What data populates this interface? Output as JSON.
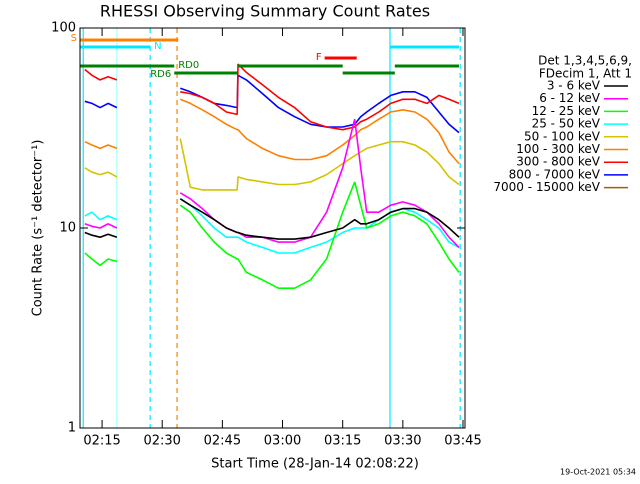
{
  "chart_data": {
    "type": "line",
    "title": "RHESSI Observing Summary Count Rates",
    "xlabel": "Start Time (28-Jan-14 02:08:22)",
    "ylabel": "Count Rate (s⁻¹ detector⁻¹)",
    "footer": "19-Oct-2021 05:34",
    "legend_title": [
      "Det 1,3,4,5,6,9,",
      "FDecim 1, Att 1"
    ],
    "log_y": true,
    "xlim": [
      9.5,
      105.5
    ],
    "ylim": [
      1,
      100
    ],
    "yticks": [
      1,
      10,
      100
    ],
    "xticks": [
      {
        "value": 15,
        "label": "02:15"
      },
      {
        "value": 30,
        "label": "02:30"
      },
      {
        "value": 45,
        "label": "02:45"
      },
      {
        "value": 60,
        "label": "03:00"
      },
      {
        "value": 75,
        "label": "03:15"
      },
      {
        "value": 90,
        "label": "03:30"
      },
      {
        "value": 105,
        "label": "03:45"
      }
    ],
    "x": [
      10.7,
      12.5,
      14.5,
      16.5,
      18.7,
      26,
      34.5,
      37,
      40,
      43,
      46,
      48.7,
      48.9,
      51,
      55,
      59,
      63,
      67,
      71,
      75,
      78,
      79.5,
      81,
      84,
      87,
      90,
      93,
      96,
      99,
      101.5,
      104
    ],
    "series": [
      {
        "name": "3 - 6 keV",
        "color": "#000000",
        "values": [
          9.5,
          9.2,
          9.0,
          9.3,
          9.0,
          null,
          14,
          13,
          12,
          11,
          10,
          9.5,
          9.5,
          9.2,
          9,
          8.8,
          8.8,
          9,
          9.5,
          10,
          11,
          10.5,
          10.5,
          11,
          12,
          12.5,
          12.5,
          12,
          11,
          10,
          9
        ]
      },
      {
        "name": "6 - 12 keV",
        "color": "#ff00ff",
        "values": [
          10.5,
          10.2,
          10,
          10.5,
          10,
          null,
          15,
          14,
          12.5,
          11,
          10,
          9.5,
          9.5,
          9,
          9,
          8.5,
          8.5,
          9,
          12,
          20,
          35,
          20,
          12,
          12,
          13,
          13.5,
          13,
          12,
          10.5,
          9,
          8
        ]
      },
      {
        "name": "12 - 25 keV",
        "color": "#00ff00",
        "values": [
          7.5,
          7,
          6.5,
          7,
          6.8,
          null,
          13,
          12,
          10,
          8.5,
          7.5,
          7,
          7,
          6,
          5.5,
          5,
          5,
          5.5,
          7,
          12,
          17,
          13,
          10,
          10.5,
          11.5,
          12,
          11.5,
          10.5,
          8.5,
          7,
          6
        ]
      },
      {
        "name": "25 - 50 keV",
        "color": "#00ffff",
        "values": [
          11.5,
          12,
          11,
          11.5,
          11,
          null,
          14,
          13,
          11.5,
          10,
          9,
          9,
          9,
          8.5,
          8,
          7.5,
          7.5,
          8,
          8.5,
          9.5,
          10,
          10,
          10,
          11,
          12,
          12.5,
          12,
          11,
          10,
          8.5,
          8
        ]
      },
      {
        "name": "50 - 100 keV",
        "color": "#d4c400",
        "values": [
          20,
          19,
          18.5,
          19,
          18,
          null,
          28,
          16,
          15.5,
          15.5,
          15.5,
          15.5,
          18,
          17.5,
          17,
          16.5,
          16.5,
          17,
          18.5,
          21,
          23,
          24,
          25,
          26,
          27,
          27,
          26,
          24,
          21,
          18,
          16.5
        ]
      },
      {
        "name": "100 - 300 keV",
        "color": "#ff8000",
        "values": [
          27,
          26,
          25,
          26,
          25,
          null,
          44,
          42,
          39,
          36,
          33,
          31,
          31,
          28,
          25,
          23,
          22,
          22,
          23,
          26,
          29,
          31,
          32,
          35,
          38,
          39,
          38,
          35,
          30,
          24,
          21
        ]
      },
      {
        "name": "300 - 800 keV",
        "color": "#ff0000",
        "values": [
          62,
          58,
          55,
          57,
          55,
          null,
          48,
          47,
          45,
          42,
          38,
          37,
          66,
          60,
          52,
          45,
          40,
          34,
          32,
          31,
          32,
          34,
          35,
          38,
          42,
          44,
          44,
          42,
          46,
          44,
          42
        ]
      },
      {
        "name": "800 - 7000 keV",
        "color": "#0000ff",
        "values": [
          43,
          42,
          40,
          42,
          40,
          null,
          50,
          48,
          45,
          42,
          41,
          40,
          58,
          55,
          47,
          40,
          36,
          33,
          32,
          32,
          33,
          36,
          38,
          42,
          46,
          48,
          48,
          45,
          38,
          33,
          30
        ]
      },
      {
        "name": "7000 - 15000 keV",
        "color": "#a06000",
        "values": [
          null,
          null,
          null,
          null,
          null,
          null,
          null,
          null,
          null,
          null,
          null,
          null,
          null,
          null,
          null,
          null,
          null,
          null,
          null,
          null,
          null,
          null,
          null,
          null,
          null,
          null,
          null,
          null,
          null,
          null,
          null
        ]
      }
    ],
    "flags": [
      {
        "label": "S",
        "color": "#ff8000",
        "intervals": [
          [
            9.5,
            34
          ]
        ]
      },
      {
        "label": "N",
        "color": "#00e8ff",
        "intervals": [
          [
            9.5,
            27
          ],
          [
            86.8,
            104
          ]
        ]
      },
      {
        "label": "F",
        "color": "#ff0000",
        "intervals": [
          [
            70.5,
            78.5
          ]
        ]
      },
      {
        "label": "RD0",
        "color": "#008000",
        "intervals": [
          [
            9.5,
            33
          ],
          [
            48.8,
            75
          ],
          [
            88,
            104
          ]
        ]
      },
      {
        "label": "RD6",
        "color": "#008000",
        "intervals": [
          [
            33,
            48.8
          ],
          [
            75,
            88
          ]
        ]
      }
    ],
    "markers": [
      {
        "x": 10.3,
        "color": "#00e8ff",
        "dashed": false
      },
      {
        "x": 18.7,
        "color": "#a0ffff",
        "dashed": false
      },
      {
        "x": 27,
        "color": "#00e8ff",
        "dashed": true
      },
      {
        "x": 33.7,
        "color": "#ff8000",
        "dashed": true
      },
      {
        "x": 86.8,
        "color": "#00e8ff",
        "dashed": false
      },
      {
        "x": 104.3,
        "color": "#00e8ff",
        "dashed": true
      }
    ]
  }
}
